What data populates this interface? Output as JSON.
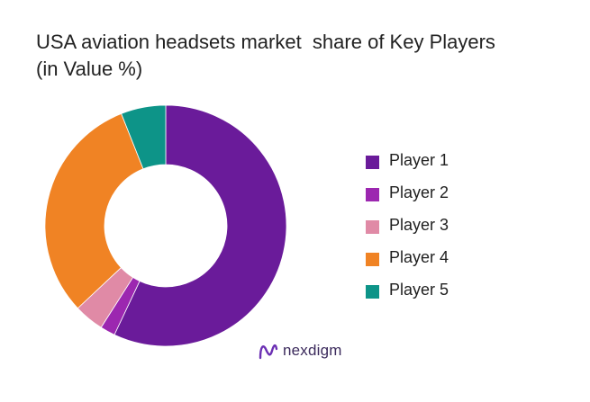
{
  "title_lines": [
    "USA aviation headsets market  share of Key Players",
    "(in Value %)"
  ],
  "brand": {
    "name": "nexdigm",
    "icon": "nexdigm-logo-icon",
    "color": "#6b2fb3"
  },
  "chart_data": {
    "type": "pie",
    "variant": "donut",
    "title": "USA aviation headsets market  share of Key Players (in Value %)",
    "legend_position": "right",
    "series": [
      {
        "name": "Player 1",
        "value": 57,
        "color": "#6a1b9a"
      },
      {
        "name": "Player 2",
        "value": 2,
        "color": "#9c27b0"
      },
      {
        "name": "Player 3",
        "value": 4,
        "color": "#e08aa6"
      },
      {
        "name": "Player 4",
        "value": 31,
        "color": "#f08324"
      },
      {
        "name": "Player 5",
        "value": 6,
        "color": "#0d9488"
      }
    ]
  }
}
